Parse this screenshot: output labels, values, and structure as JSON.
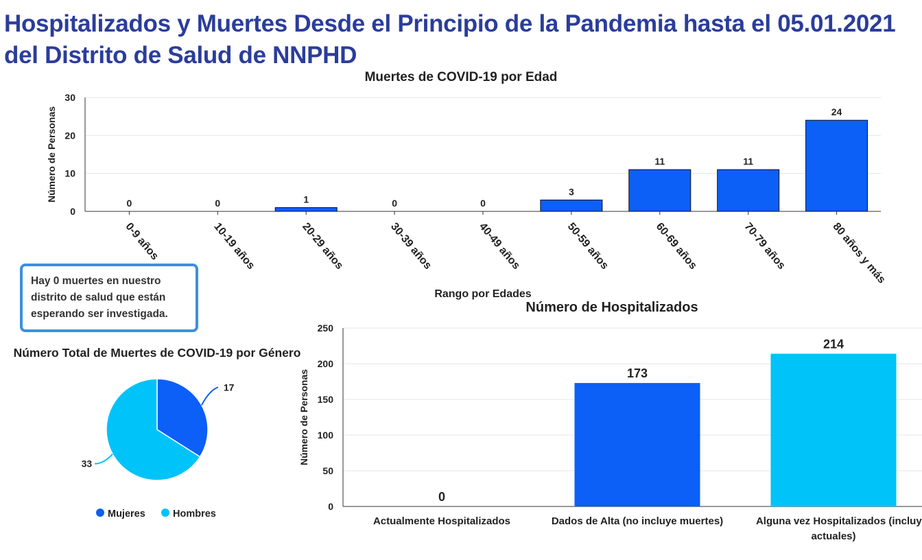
{
  "page": {
    "title": "Hospitalizados y Muertes Desde el Principio de la Pandemia hasta el 05.01.2021 del Distrito de Salud de NNPHD",
    "note": "Hay 0 muertes en nuestro distrito de salud que están esperando ser investigada."
  },
  "colors": {
    "blue": "#0c5ff7",
    "light_blue": "#00c3f9",
    "title_blue": "#2b3d9b"
  },
  "chart_data": [
    {
      "type": "bar",
      "title": "Muertes de COVID-19 por Edad",
      "xlabel": "Rango por Edades",
      "ylabel": "Número de Personas",
      "categories": [
        "0-9 años",
        "10-19 años",
        "20-29 años",
        "30-39 años",
        "40-49 años",
        "50-59 años",
        "60-69 años",
        "70-79 años",
        "80 años y más"
      ],
      "values": [
        0,
        0,
        1,
        0,
        0,
        3,
        11,
        11,
        24
      ],
      "ylim": [
        0,
        30
      ],
      "yticks": [
        0,
        10,
        20,
        30
      ],
      "grid": true
    },
    {
      "type": "pie",
      "title": "Número Total de Muertes de COVID-19 por Género",
      "labels": [
        "Mujeres",
        "Hombres"
      ],
      "values": [
        17,
        33
      ],
      "colors": [
        "#0c5ff7",
        "#00c3f9"
      ],
      "legend": "bottom"
    },
    {
      "type": "bar",
      "title": "Número de Hospitalizados",
      "ylabel": "Número de Personas",
      "xlabel": "",
      "categories": [
        "Actualmente Hospitalizados",
        "Dados de Alta (no incluye muertes)",
        "Alguna vez Hospitalizados (incluye actuales)"
      ],
      "values": [
        0,
        173,
        214
      ],
      "colors": [
        "#0c5ff7",
        "#0c5ff7",
        "#00c3f9"
      ],
      "ylim": [
        0,
        250
      ],
      "yticks": [
        0,
        50,
        100,
        150,
        200,
        250
      ],
      "grid": true
    }
  ]
}
